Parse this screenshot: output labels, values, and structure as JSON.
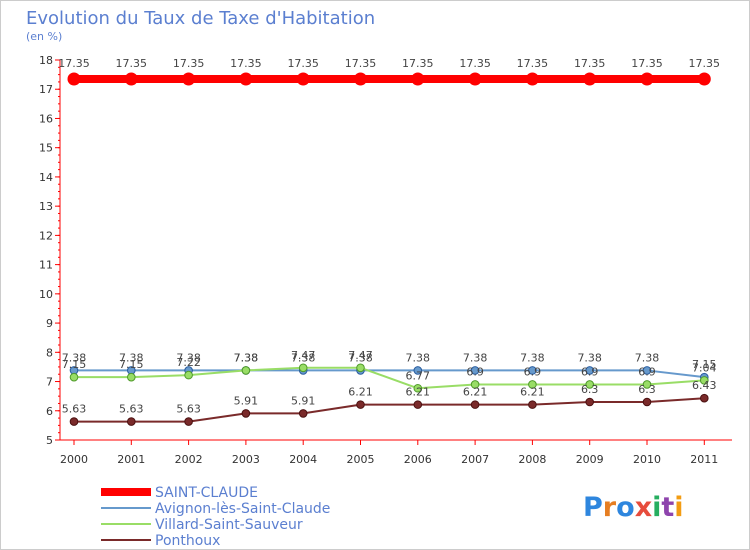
{
  "chart_data": {
    "type": "line",
    "title": "Evolution du Taux de Taxe d'Habitation",
    "subtitle": "(en %)",
    "x": [
      "2000",
      "2001",
      "2002",
      "2003",
      "2004",
      "2005",
      "2006",
      "2007",
      "2008",
      "2009",
      "2010",
      "2011"
    ],
    "ylim": [
      5,
      18
    ],
    "yticks": [
      "5",
      "6",
      "7",
      "8",
      "9",
      "10",
      "11",
      "12",
      "13",
      "14",
      "15",
      "16",
      "17",
      "18"
    ],
    "grid": false,
    "legend_position": "bottom-left",
    "series": [
      {
        "name": "SAINT-CLAUDE",
        "color": "#ff0000",
        "values": [
          17.35,
          17.35,
          17.35,
          17.35,
          17.35,
          17.35,
          17.35,
          17.35,
          17.35,
          17.35,
          17.35,
          17.35
        ],
        "labels": [
          "17.35",
          "17.35",
          "17.35",
          "17.35",
          "17.35",
          "17.35",
          "17.35",
          "17.35",
          "17.35",
          "17.35",
          "17.35",
          "17.35"
        ]
      },
      {
        "name": "Avignon-lès-Saint-Claude",
        "color": "#6699cc",
        "values": [
          7.38,
          7.38,
          7.38,
          7.38,
          7.38,
          7.38,
          7.38,
          7.38,
          7.38,
          7.38,
          7.38,
          7.15
        ],
        "labels": [
          "7.38",
          "7.38",
          "7.38",
          "7.38",
          "7.38",
          "7.38",
          "7.38",
          "7.38",
          "7.38",
          "7.38",
          "7.38",
          "7.15"
        ]
      },
      {
        "name": "Villard-Saint-Sauveur",
        "color": "#99dd66",
        "values": [
          7.15,
          7.15,
          7.22,
          7.38,
          7.47,
          7.47,
          6.77,
          6.9,
          6.9,
          6.9,
          6.9,
          7.04
        ],
        "labels": [
          "7.15",
          "7.15",
          "7.22",
          "7.38",
          "7.47",
          "7.47",
          "6.77",
          "6.9",
          "6.9",
          "6.9",
          "6.9",
          "7.04"
        ]
      },
      {
        "name": "Ponthoux",
        "color": "#7a2a2a",
        "values": [
          5.63,
          5.63,
          5.63,
          5.91,
          5.91,
          6.21,
          6.21,
          6.21,
          6.21,
          6.3,
          6.3,
          6.43
        ],
        "labels": [
          "5.63",
          "5.63",
          "5.63",
          "5.91",
          "5.91",
          "6.21",
          "6.21",
          "6.21",
          "6.21",
          "6.3",
          "6.3",
          "6.43"
        ]
      }
    ]
  },
  "brand": {
    "logo_text": "Proxiti"
  }
}
